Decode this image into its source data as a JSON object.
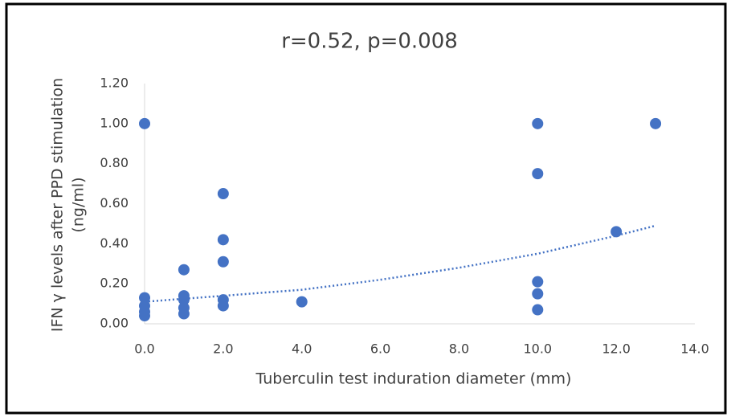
{
  "chart_data": {
    "type": "scatter",
    "title": "r=0.52, p=0.008",
    "x_label": "Tuberculin test induration diameter (mm)",
    "y_label": [
      "IFN γ levels after PPD stimulation",
      "(ng/ml)"
    ],
    "color": "#4472c4",
    "x": [
      0,
      0,
      0,
      0,
      0,
      1,
      1,
      1,
      1,
      1,
      2,
      2,
      2,
      2,
      2,
      4,
      10,
      10,
      10,
      10,
      10,
      12,
      13
    ],
    "values": [
      1.0,
      0.13,
      0.09,
      0.06,
      0.04,
      0.27,
      0.14,
      0.12,
      0.08,
      0.05,
      0.65,
      0.42,
      0.31,
      0.12,
      0.09,
      0.11,
      1.0,
      0.75,
      0.21,
      0.15,
      0.07,
      0.46,
      1.0
    ],
    "trendline": {
      "x": [
        0,
        2,
        4,
        6,
        8,
        10,
        12,
        13
      ],
      "values": [
        0.11,
        0.14,
        0.17,
        0.22,
        0.28,
        0.35,
        0.44,
        0.49
      ]
    },
    "xlim": [
      0,
      14
    ],
    "ylim": [
      0,
      1.2
    ],
    "xticks": [
      {
        "value": 0,
        "label": "0.0"
      },
      {
        "value": 2,
        "label": "2.0"
      },
      {
        "value": 4,
        "label": "4.0"
      },
      {
        "value": 6,
        "label": "6.0"
      },
      {
        "value": 8,
        "label": "8.0"
      },
      {
        "value": 10,
        "label": "10.0"
      },
      {
        "value": 12,
        "label": "12.0"
      },
      {
        "value": 14,
        "label": "14.0"
      }
    ],
    "yticks": [
      {
        "value": 0,
        "label": "0.00"
      },
      {
        "value": 0.2,
        "label": "0.20"
      },
      {
        "value": 0.4,
        "label": "0.40"
      },
      {
        "value": 0.6,
        "label": "0.60"
      },
      {
        "value": 0.8,
        "label": "0.80"
      },
      {
        "value": 1.0,
        "label": "1.00"
      },
      {
        "value": 1.2,
        "label": "1.20"
      }
    ],
    "grid": false
  }
}
